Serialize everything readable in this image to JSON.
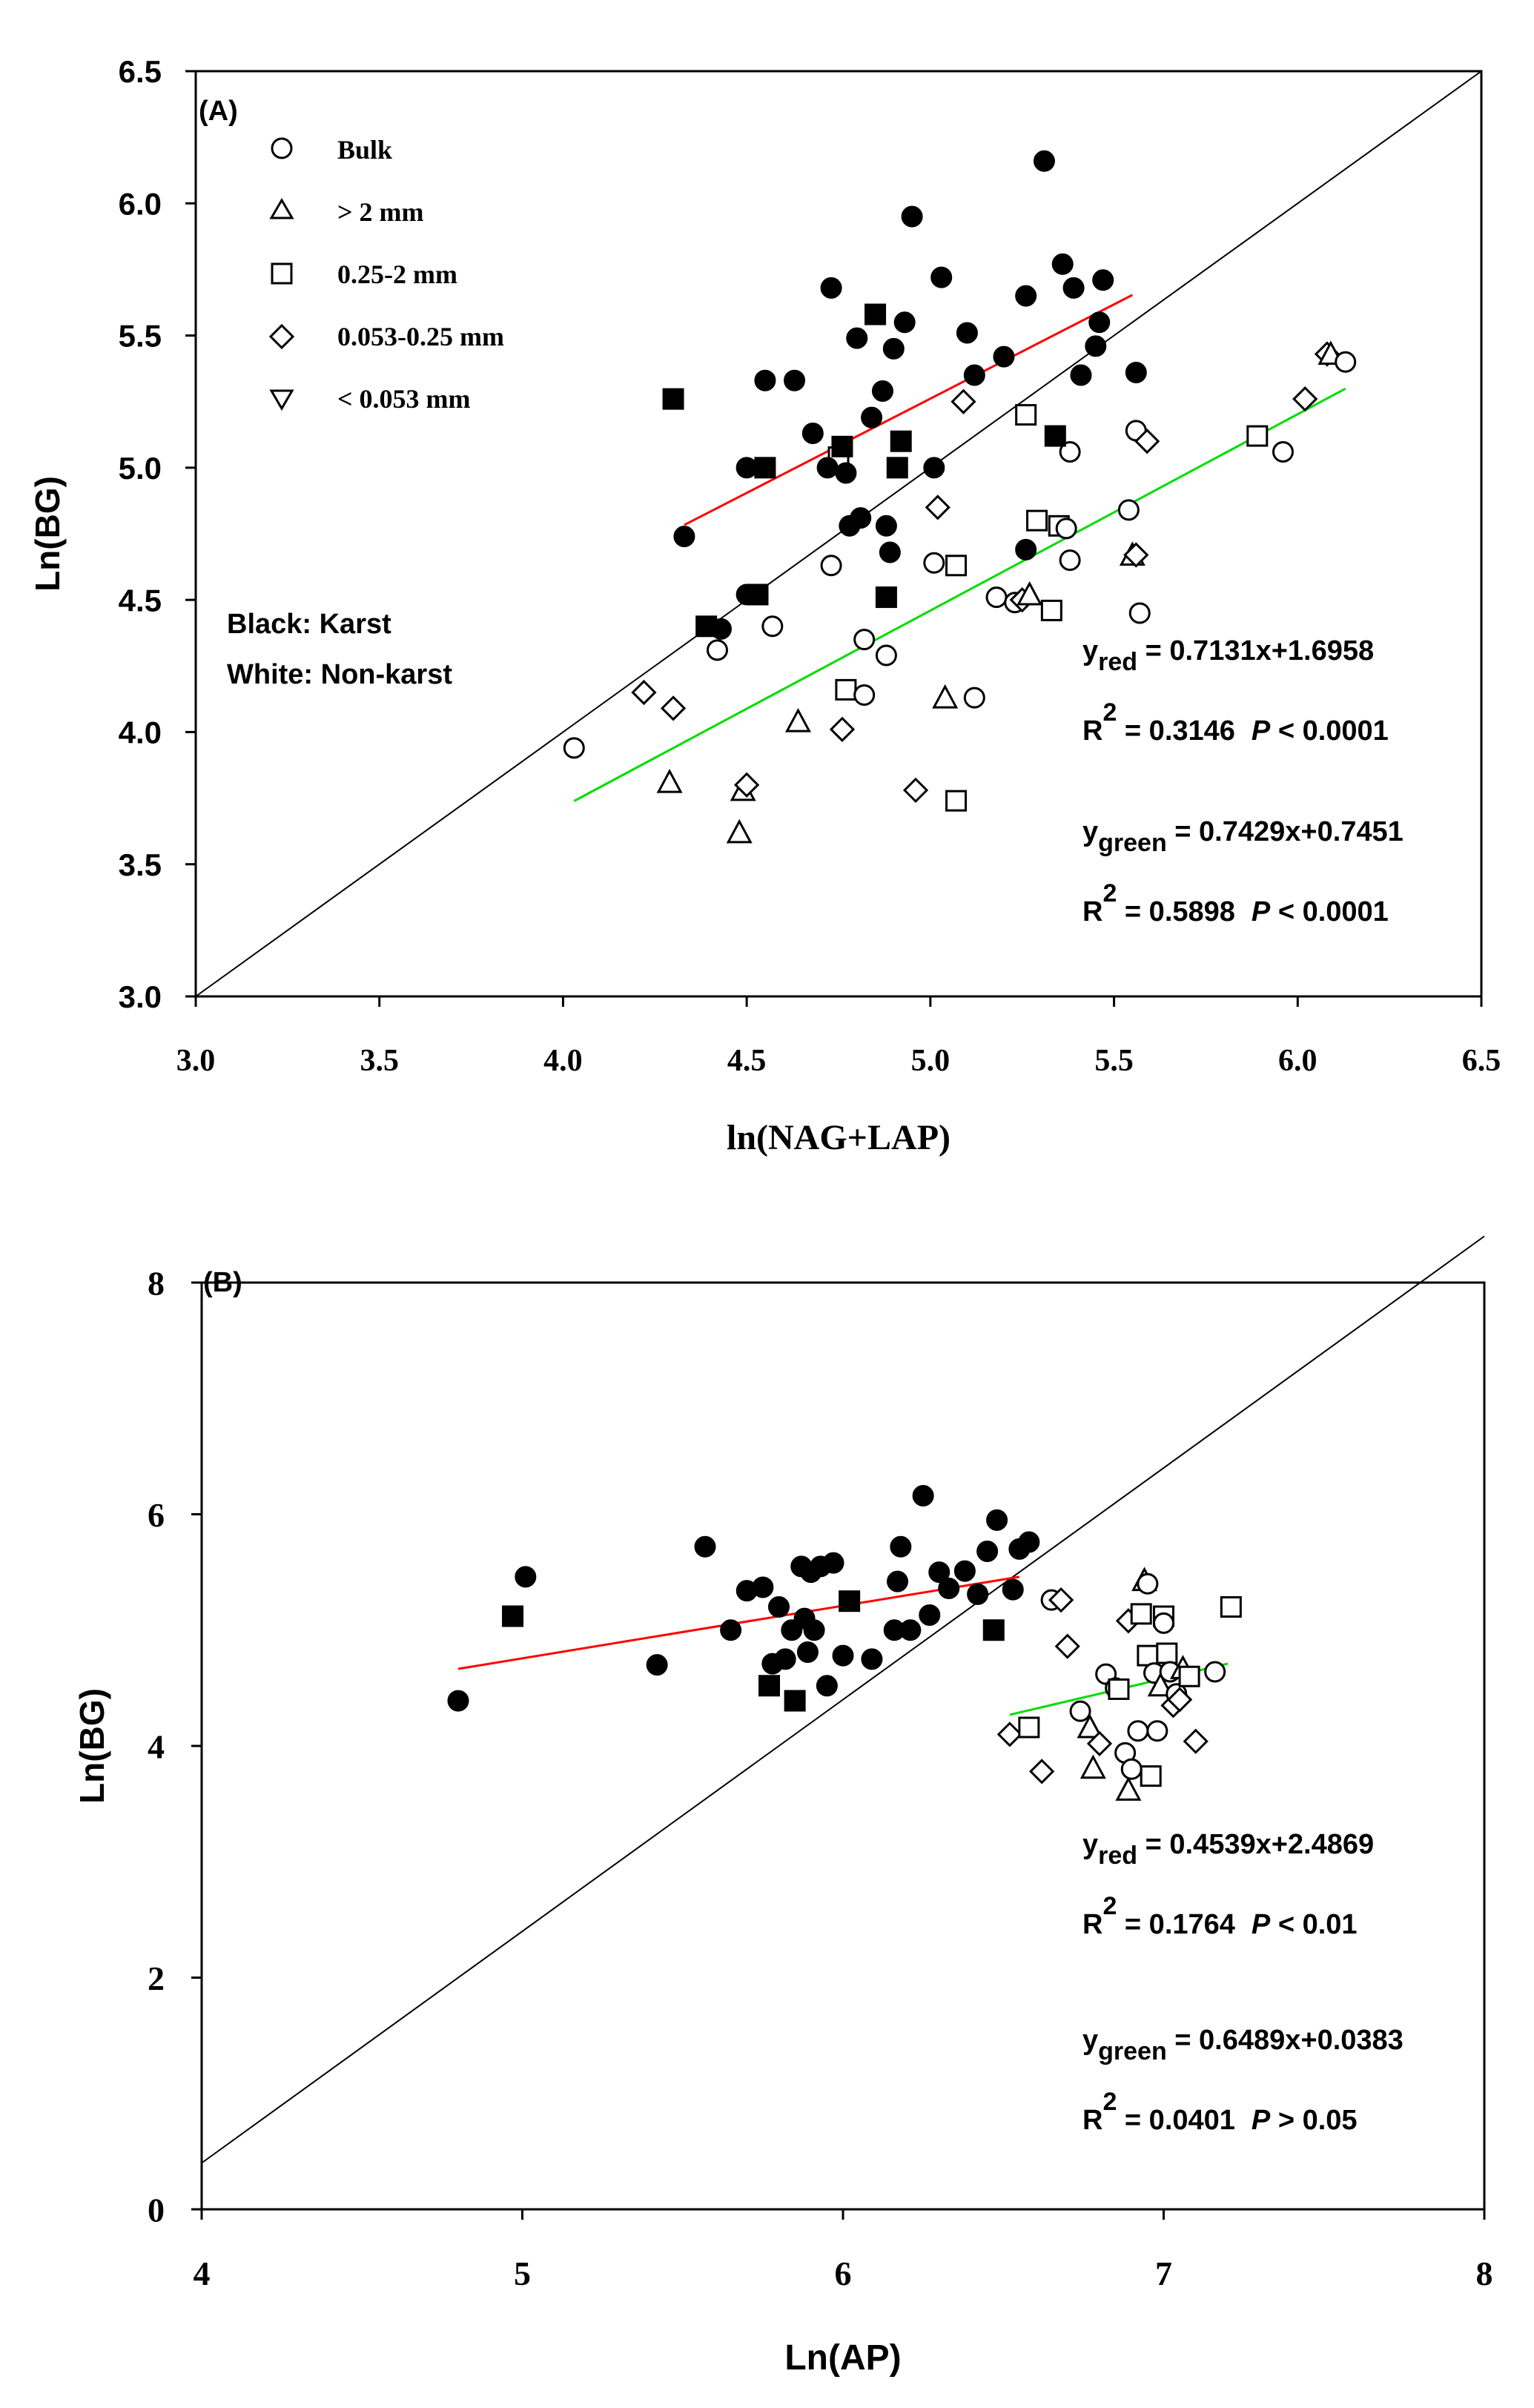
{
  "legend": {
    "items": [
      {
        "marker": "circle",
        "label": "Bulk"
      },
      {
        "marker": "triangle-up",
        "label": "> 2 mm"
      },
      {
        "marker": "square",
        "label": "0.25-2 mm"
      },
      {
        "marker": "diamond",
        "label": "0.053-0.25 mm"
      },
      {
        "marker": "triangle-down",
        "label": "< 0.053 mm"
      }
    ]
  },
  "color_key": {
    "black": "Black: Karst",
    "white": "White: Non-karst"
  },
  "colors": {
    "red_line": "#ff0000",
    "green_line": "#00dd00",
    "karst": "#000000",
    "nonkarst": "#ffffff"
  },
  "chart_data": [
    {
      "type": "scatter",
      "panel_label": "(A)",
      "xlabel": "ln(NAG+LAP)",
      "ylabel": "Ln(BG)",
      "xlim": [
        3.0,
        6.5
      ],
      "ylim": [
        3.0,
        6.5
      ],
      "xticks": [
        3.0,
        3.5,
        4.0,
        4.5,
        5.0,
        5.5,
        6.0,
        6.5
      ],
      "yticks": [
        3.0,
        3.5,
        4.0,
        4.5,
        5.0,
        5.5,
        6.0,
        6.5
      ],
      "tick_labels_x": [
        "3.0",
        "3.5",
        "4.0",
        "4.5",
        "5.0",
        "5.5",
        "6.0",
        "6.5"
      ],
      "tick_labels_y": [
        "3.0",
        "3.5",
        "4.0",
        "4.5",
        "5.0",
        "5.5",
        "6.0",
        "6.5"
      ],
      "reference_line": {
        "from": [
          3.0,
          3.0
        ],
        "to": [
          6.5,
          6.5
        ]
      },
      "fits": [
        {
          "color": "red",
          "x_range": [
            4.33,
            5.55
          ],
          "slope": 0.7131,
          "intercept": 1.6958,
          "eq_prefix": "y",
          "eq_sub": "red",
          "eq_rest": " = 0.7131x+1.6958",
          "r2_label": "R",
          "r2_sup": "2",
          "r2_value": " = 0.3146",
          "p_label": "P",
          "p_value": " < 0.0001"
        },
        {
          "color": "green",
          "x_range": [
            4.03,
            6.13
          ],
          "slope": 0.7429,
          "intercept": 0.7451,
          "eq_prefix": "y",
          "eq_sub": "green",
          "eq_rest": " = 0.7429x+0.7451",
          "r2_label": "R",
          "r2_sup": "2",
          "r2_value": " = 0.5898",
          "p_label": "P",
          "p_value": " < 0.0001"
        }
      ],
      "points_karst": [
        [
          4.3,
          5.26,
          "s"
        ],
        [
          4.33,
          4.74,
          "c"
        ],
        [
          4.39,
          4.4,
          "s"
        ],
        [
          4.43,
          4.39,
          "c"
        ],
        [
          4.5,
          4.52,
          "c"
        ],
        [
          4.53,
          4.52,
          "s"
        ],
        [
          4.5,
          5.0,
          "c"
        ],
        [
          4.55,
          5.0,
          "s"
        ],
        [
          4.55,
          5.33,
          "c"
        ],
        [
          4.63,
          5.33,
          "c"
        ],
        [
          4.68,
          5.13,
          "c"
        ],
        [
          4.72,
          5.0,
          "c"
        ],
        [
          4.73,
          5.68,
          "c"
        ],
        [
          4.76,
          5.08,
          "s"
        ],
        [
          4.77,
          4.98,
          "c"
        ],
        [
          4.78,
          4.78,
          "c"
        ],
        [
          4.8,
          5.49,
          "c"
        ],
        [
          4.81,
          4.81,
          "c"
        ],
        [
          4.84,
          5.19,
          "c"
        ],
        [
          4.85,
          5.58,
          "s"
        ],
        [
          4.87,
          5.29,
          "c"
        ],
        [
          4.88,
          4.51,
          "s"
        ],
        [
          4.88,
          4.78,
          "c"
        ],
        [
          4.89,
          4.68,
          "c"
        ],
        [
          4.9,
          5.45,
          "c"
        ],
        [
          4.91,
          5.0,
          "s"
        ],
        [
          4.92,
          5.1,
          "s"
        ],
        [
          4.93,
          5.55,
          "c"
        ],
        [
          4.95,
          5.95,
          "c"
        ],
        [
          5.01,
          5.0,
          "c"
        ],
        [
          5.03,
          5.72,
          "c"
        ],
        [
          5.1,
          5.51,
          "c"
        ],
        [
          5.12,
          5.35,
          "c"
        ],
        [
          5.2,
          5.42,
          "c"
        ],
        [
          5.26,
          5.65,
          "c"
        ],
        [
          5.26,
          4.69,
          "c"
        ],
        [
          5.31,
          6.16,
          "c"
        ],
        [
          5.34,
          5.12,
          "s"
        ],
        [
          5.36,
          5.77,
          "c"
        ],
        [
          5.39,
          5.68,
          "c"
        ],
        [
          5.41,
          5.35,
          "c"
        ],
        [
          5.45,
          5.46,
          "c"
        ],
        [
          5.46,
          5.55,
          "c"
        ],
        [
          5.47,
          5.71,
          "c"
        ],
        [
          5.56,
          5.36,
          "c"
        ]
      ],
      "points_nonkarst": [
        [
          4.03,
          3.94,
          "c"
        ],
        [
          4.22,
          4.15,
          "d"
        ],
        [
          4.29,
          3.81,
          "t"
        ],
        [
          4.3,
          4.09,
          "d"
        ],
        [
          4.42,
          4.31,
          "c"
        ],
        [
          4.48,
          3.62,
          "t"
        ],
        [
          4.49,
          3.78,
          "t"
        ],
        [
          4.5,
          3.8,
          "d"
        ],
        [
          4.57,
          4.4,
          "c"
        ],
        [
          4.64,
          4.04,
          "t"
        ],
        [
          4.73,
          4.63,
          "c"
        ],
        [
          4.75,
          5.04,
          "s"
        ],
        [
          4.76,
          4.01,
          "d"
        ],
        [
          4.77,
          4.16,
          "s"
        ],
        [
          4.82,
          4.35,
          "c"
        ],
        [
          4.82,
          4.14,
          "c"
        ],
        [
          4.88,
          4.29,
          "c"
        ],
        [
          4.96,
          3.78,
          "d"
        ],
        [
          5.01,
          4.64,
          "c"
        ],
        [
          5.02,
          4.85,
          "d"
        ],
        [
          5.04,
          4.13,
          "t"
        ],
        [
          5.07,
          4.63,
          "s"
        ],
        [
          5.07,
          3.74,
          "s"
        ],
        [
          5.09,
          5.25,
          "d"
        ],
        [
          5.12,
          4.13,
          "c"
        ],
        [
          5.18,
          4.51,
          "c"
        ],
        [
          5.23,
          4.49,
          "c"
        ],
        [
          5.25,
          4.5,
          "d"
        ],
        [
          5.26,
          5.2,
          "s"
        ],
        [
          5.27,
          4.52,
          "t"
        ],
        [
          5.29,
          4.8,
          "s"
        ],
        [
          5.33,
          4.46,
          "s"
        ],
        [
          5.35,
          4.78,
          "s"
        ],
        [
          5.37,
          4.77,
          "c"
        ],
        [
          5.38,
          4.65,
          "c"
        ],
        [
          5.38,
          5.06,
          "c"
        ],
        [
          5.54,
          4.84,
          "c"
        ],
        [
          5.55,
          4.67,
          "t"
        ],
        [
          5.56,
          5.14,
          "c"
        ],
        [
          5.56,
          4.67,
          "d"
        ],
        [
          5.57,
          4.45,
          "c"
        ],
        [
          5.59,
          5.1,
          "d"
        ],
        [
          5.89,
          5.12,
          "s"
        ],
        [
          5.96,
          5.06,
          "c"
        ],
        [
          6.02,
          5.26,
          "d"
        ],
        [
          6.08,
          5.43,
          "d"
        ],
        [
          6.09,
          5.43,
          "t"
        ],
        [
          6.13,
          5.4,
          "c"
        ]
      ]
    },
    {
      "type": "scatter",
      "panel_label": "(B)",
      "xlabel": "Ln(AP)",
      "ylabel": "Ln(BG)",
      "xlim": [
        4,
        8
      ],
      "ylim": [
        0,
        8
      ],
      "xticks": [
        4,
        5,
        6,
        7,
        8
      ],
      "yticks": [
        0,
        2,
        4,
        6,
        8
      ],
      "tick_labels_x": [
        "4",
        "5",
        "6",
        "7",
        "8"
      ],
      "tick_labels_y": [
        "0",
        "2",
        "4",
        "6",
        "8"
      ],
      "reference_line": {
        "from": [
          4.0,
          0.4
        ],
        "to": [
          8.0,
          8.4
        ]
      },
      "fits": [
        {
          "color": "red",
          "x_range": [
            4.8,
            6.55
          ],
          "slope": 0.4539,
          "intercept": 2.4869,
          "eq_prefix": "y",
          "eq_sub": "red",
          "eq_rest": " = 0.4539x+2.4869",
          "r2_label": "R",
          "r2_sup": "2",
          "r2_value": " = 0.1764",
          "p_label": "P",
          "p_value": " < 0.01"
        },
        {
          "color": "green",
          "x_range": [
            6.52,
            7.2
          ],
          "slope": 0.6489,
          "intercept": 0.0383,
          "eq_prefix": "y",
          "eq_sub": "green",
          "eq_rest": " = 0.6489x+0.0383",
          "r2_label": "R",
          "r2_sup": "2",
          "r2_value": " = 0.0401",
          "p_label": "P",
          "p_value": " > 0.05"
        }
      ],
      "points_karst": [
        [
          4.8,
          4.39,
          "c"
        ],
        [
          4.97,
          5.12,
          "s"
        ],
        [
          5.01,
          5.46,
          "c"
        ],
        [
          5.42,
          4.7,
          "c"
        ],
        [
          5.57,
          5.72,
          "c"
        ],
        [
          5.65,
          5.0,
          "c"
        ],
        [
          5.7,
          5.34,
          "c"
        ],
        [
          5.75,
          5.37,
          "c"
        ],
        [
          5.77,
          4.52,
          "s"
        ],
        [
          5.78,
          4.71,
          "c"
        ],
        [
          5.8,
          5.2,
          "c"
        ],
        [
          5.82,
          4.75,
          "c"
        ],
        [
          5.84,
          5.0,
          "c"
        ],
        [
          5.85,
          4.39,
          "s"
        ],
        [
          5.87,
          5.55,
          "c"
        ],
        [
          5.88,
          5.1,
          "c"
        ],
        [
          5.89,
          4.81,
          "c"
        ],
        [
          5.9,
          5.5,
          "c"
        ],
        [
          5.91,
          5.0,
          "c"
        ],
        [
          5.93,
          5.55,
          "c"
        ],
        [
          5.95,
          4.52,
          "c"
        ],
        [
          5.97,
          5.58,
          "c"
        ],
        [
          6.0,
          4.78,
          "c"
        ],
        [
          6.02,
          5.25,
          "s"
        ],
        [
          6.09,
          4.75,
          "c"
        ],
        [
          6.16,
          5.0,
          "c"
        ],
        [
          6.17,
          5.42,
          "c"
        ],
        [
          6.18,
          5.72,
          "c"
        ],
        [
          6.21,
          5.0,
          "c"
        ],
        [
          6.25,
          6.16,
          "c"
        ],
        [
          6.27,
          5.13,
          "c"
        ],
        [
          6.3,
          5.5,
          "c"
        ],
        [
          6.33,
          5.36,
          "c"
        ],
        [
          6.38,
          5.51,
          "c"
        ],
        [
          6.42,
          5.31,
          "c"
        ],
        [
          6.45,
          5.68,
          "c"
        ],
        [
          6.47,
          5.0,
          "s"
        ],
        [
          6.48,
          5.95,
          "c"
        ],
        [
          6.53,
          5.35,
          "c"
        ],
        [
          6.55,
          5.7,
          "c"
        ],
        [
          6.58,
          5.76,
          "c"
        ]
      ],
      "points_nonkarst": [
        [
          6.52,
          4.1,
          "d"
        ],
        [
          6.58,
          4.16,
          "s"
        ],
        [
          6.62,
          3.78,
          "d"
        ],
        [
          6.65,
          5.26,
          "c"
        ],
        [
          6.68,
          5.26,
          "d"
        ],
        [
          6.7,
          4.86,
          "d"
        ],
        [
          6.74,
          4.3,
          "c"
        ],
        [
          6.77,
          4.16,
          "t"
        ],
        [
          6.78,
          3.81,
          "t"
        ],
        [
          6.8,
          4.02,
          "d"
        ],
        [
          6.82,
          4.62,
          "c"
        ],
        [
          6.85,
          4.5,
          "c"
        ],
        [
          6.86,
          4.49,
          "s"
        ],
        [
          6.88,
          3.94,
          "c"
        ],
        [
          6.89,
          3.62,
          "t"
        ],
        [
          6.89,
          5.08,
          "d"
        ],
        [
          6.9,
          3.8,
          "c"
        ],
        [
          6.92,
          4.13,
          "c"
        ],
        [
          6.93,
          5.14,
          "s"
        ],
        [
          6.94,
          5.43,
          "t"
        ],
        [
          6.95,
          5.4,
          "c"
        ],
        [
          6.95,
          4.78,
          "s"
        ],
        [
          6.96,
          3.74,
          "s"
        ],
        [
          6.97,
          4.63,
          "c"
        ],
        [
          6.98,
          4.13,
          "c"
        ],
        [
          6.99,
          4.52,
          "t"
        ],
        [
          7.0,
          5.12,
          "s"
        ],
        [
          7.0,
          5.06,
          "c"
        ],
        [
          7.01,
          4.8,
          "s"
        ],
        [
          7.02,
          4.64,
          "c"
        ],
        [
          7.03,
          4.35,
          "d"
        ],
        [
          7.04,
          4.45,
          "c"
        ],
        [
          7.05,
          4.4,
          "d"
        ],
        [
          7.06,
          4.67,
          "t"
        ],
        [
          7.08,
          4.6,
          "s"
        ],
        [
          7.1,
          4.04,
          "d"
        ],
        [
          7.16,
          4.64,
          "c"
        ],
        [
          7.21,
          5.2,
          "s"
        ]
      ]
    }
  ]
}
